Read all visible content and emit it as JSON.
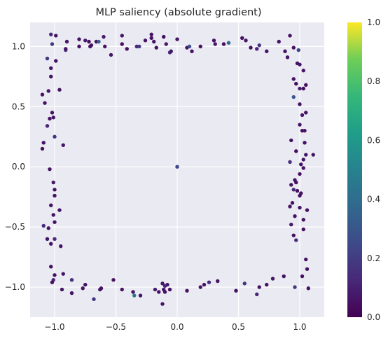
{
  "chart_data": {
    "type": "scatter",
    "title": "MLP saliency (absolute gradient)",
    "xlabel": "",
    "ylabel": "",
    "xlim": [
      -1.2,
      1.2
    ],
    "ylim": [
      -1.25,
      1.2
    ],
    "xticks": [
      -1.0,
      -0.5,
      0.0,
      0.5,
      1.0
    ],
    "xtick_labels": [
      "−1.0",
      "−0.5",
      "0.0",
      "0.5",
      "1.0"
    ],
    "yticks": [
      -1.0,
      -0.5,
      0.0,
      0.5,
      1.0
    ],
    "ytick_labels": [
      "−1.0",
      "−0.5",
      "0.0",
      "0.5",
      "1.0"
    ],
    "grid": true,
    "colormap": "viridis",
    "colorbar": {
      "range": [
        0,
        1
      ],
      "ticks": [
        0,
        0.2,
        0.4,
        0.6,
        0.8,
        1.0
      ],
      "tick_labels": [
        "0.0",
        "0.2",
        "0.4",
        "0.6",
        "0.8",
        "1.0"
      ]
    },
    "colors": {
      "axes_bg": "#eaeaf2",
      "grid": "#ffffff",
      "text": "#262626"
    },
    "points": [
      {
        "x": -1.03,
        "y": 1.1,
        "c": 0.12
      },
      {
        "x": -0.99,
        "y": 1.09,
        "c": 0.05
      },
      {
        "x": -1.02,
        "y": 1.02,
        "c": 0.18
      },
      {
        "x": -0.9,
        "y": 1.04,
        "c": 0.06
      },
      {
        "x": -0.91,
        "y": 0.97,
        "c": 0.15
      },
      {
        "x": -0.91,
        "y": 0.98,
        "c": 0.07
      },
      {
        "x": -0.8,
        "y": 1.0,
        "c": 0.05
      },
      {
        "x": -0.8,
        "y": 1.06,
        "c": 0.05
      },
      {
        "x": -0.75,
        "y": 1.05,
        "c": 0.08
      },
      {
        "x": -0.72,
        "y": 1.04,
        "c": 0.05
      },
      {
        "x": -0.71,
        "y": 1.0,
        "c": 0.04
      },
      {
        "x": -0.7,
        "y": 1.01,
        "c": 0.06
      },
      {
        "x": -0.66,
        "y": 1.04,
        "c": 0.05
      },
      {
        "x": -0.64,
        "y": 1.04,
        "c": 0.35
      },
      {
        "x": -0.6,
        "y": 1.08,
        "c": 0.08
      },
      {
        "x": -0.59,
        "y": 1.0,
        "c": 0.06
      },
      {
        "x": -0.54,
        "y": 0.93,
        "c": 0.06
      },
      {
        "x": -0.45,
        "y": 1.09,
        "c": 0.05
      },
      {
        "x": -0.45,
        "y": 1.02,
        "c": 0.04
      },
      {
        "x": -0.41,
        "y": 0.98,
        "c": 0.05
      },
      {
        "x": -0.33,
        "y": 1.0,
        "c": 0.12
      },
      {
        "x": -0.31,
        "y": 1.0,
        "c": 0.18
      },
      {
        "x": -0.26,
        "y": 1.05,
        "c": 0.05
      },
      {
        "x": -0.21,
        "y": 1.1,
        "c": 0.06
      },
      {
        "x": -0.21,
        "y": 1.07,
        "c": 0.05
      },
      {
        "x": -0.19,
        "y": 1.04,
        "c": 0.06
      },
      {
        "x": -0.17,
        "y": 0.99,
        "c": 0.05
      },
      {
        "x": -0.11,
        "y": 1.08,
        "c": 0.04
      },
      {
        "x": -0.09,
        "y": 1.02,
        "c": 0.08
      },
      {
        "x": -0.06,
        "y": 0.95,
        "c": 0.14
      },
      {
        "x": -0.05,
        "y": 0.96,
        "c": 0.07
      },
      {
        "x": 0.0,
        "y": 1.06,
        "c": 0.06
      },
      {
        "x": 0.08,
        "y": 0.99,
        "c": 0.05
      },
      {
        "x": 0.1,
        "y": 1.0,
        "c": 0.26
      },
      {
        "x": 0.12,
        "y": 0.96,
        "c": 0.06
      },
      {
        "x": 0.19,
        "y": 1.0,
        "c": 0.05
      },
      {
        "x": 0.3,
        "y": 1.05,
        "c": 0.05
      },
      {
        "x": 0.31,
        "y": 1.02,
        "c": 0.08
      },
      {
        "x": 0.38,
        "y": 1.02,
        "c": 0.05
      },
      {
        "x": 0.42,
        "y": 1.03,
        "c": 0.4
      },
      {
        "x": 0.53,
        "y": 1.07,
        "c": 0.05
      },
      {
        "x": 0.56,
        "y": 1.05,
        "c": 0.06
      },
      {
        "x": 0.6,
        "y": 0.99,
        "c": 0.05
      },
      {
        "x": 0.65,
        "y": 0.98,
        "c": 0.12
      },
      {
        "x": 0.67,
        "y": 1.01,
        "c": 0.17
      },
      {
        "x": 0.73,
        "y": 0.96,
        "c": 0.06
      },
      {
        "x": 0.83,
        "y": 1.04,
        "c": 0.06
      },
      {
        "x": 0.88,
        "y": 0.96,
        "c": 0.05
      },
      {
        "x": 0.92,
        "y": 1.09,
        "c": 0.05
      },
      {
        "x": 0.95,
        "y": 0.99,
        "c": 0.06
      },
      {
        "x": 0.99,
        "y": 0.97,
        "c": 0.22
      },
      {
        "x": 0.9,
        "y": 0.91,
        "c": 0.06
      },
      {
        "x": 0.98,
        "y": 0.86,
        "c": 0.05
      },
      {
        "x": 1.0,
        "y": 0.85,
        "c": 0.06
      },
      {
        "x": 1.03,
        "y": 0.8,
        "c": 0.06
      },
      {
        "x": 0.95,
        "y": 0.73,
        "c": 0.06
      },
      {
        "x": 0.97,
        "y": 0.69,
        "c": 0.05
      },
      {
        "x": 1.0,
        "y": 0.65,
        "c": 0.08
      },
      {
        "x": 1.03,
        "y": 0.65,
        "c": 0.04
      },
      {
        "x": 1.05,
        "y": 0.68,
        "c": 0.05
      },
      {
        "x": 0.95,
        "y": 0.58,
        "c": 0.3
      },
      {
        "x": 1.0,
        "y": 0.52,
        "c": 0.05
      },
      {
        "x": 1.02,
        "y": 0.43,
        "c": 0.06
      },
      {
        "x": 1.05,
        "y": 0.45,
        "c": 0.05
      },
      {
        "x": 1.0,
        "y": 0.35,
        "c": 0.06
      },
      {
        "x": 1.02,
        "y": 0.3,
        "c": 0.05
      },
      {
        "x": 1.04,
        "y": 0.3,
        "c": 0.05
      },
      {
        "x": 0.93,
        "y": 0.22,
        "c": 0.06
      },
      {
        "x": 1.04,
        "y": 0.2,
        "c": 0.05
      },
      {
        "x": 0.97,
        "y": 0.13,
        "c": 0.05
      },
      {
        "x": 1.05,
        "y": 0.1,
        "c": 0.05
      },
      {
        "x": 1.11,
        "y": 0.1,
        "c": 0.05
      },
      {
        "x": 1.03,
        "y": 0.06,
        "c": 0.06
      },
      {
        "x": 0.92,
        "y": 0.04,
        "c": 0.15
      },
      {
        "x": 1.01,
        "y": 0.02,
        "c": 0.06
      },
      {
        "x": 1.03,
        "y": -0.01,
        "c": 0.06
      },
      {
        "x": 1.0,
        "y": -0.06,
        "c": 0.05
      },
      {
        "x": 0.96,
        "y": -0.11,
        "c": 0.06
      },
      {
        "x": 0.97,
        "y": -0.13,
        "c": 0.05
      },
      {
        "x": 0.93,
        "y": -0.15,
        "c": 0.06
      },
      {
        "x": 0.95,
        "y": -0.19,
        "c": 0.12
      },
      {
        "x": 0.98,
        "y": -0.2,
        "c": 0.05
      },
      {
        "x": 1.01,
        "y": -0.22,
        "c": 0.05
      },
      {
        "x": 1.0,
        "y": -0.24,
        "c": 0.05
      },
      {
        "x": 0.94,
        "y": -0.3,
        "c": 0.05
      },
      {
        "x": 0.92,
        "y": -0.33,
        "c": 0.06
      },
      {
        "x": 1.0,
        "y": -0.34,
        "c": 0.06
      },
      {
        "x": 1.06,
        "y": -0.36,
        "c": 0.05
      },
      {
        "x": 0.96,
        "y": -0.41,
        "c": 0.06
      },
      {
        "x": 1.03,
        "y": -0.44,
        "c": 0.06
      },
      {
        "x": 0.93,
        "y": -0.48,
        "c": 0.08
      },
      {
        "x": 1.03,
        "y": -0.52,
        "c": 0.05
      },
      {
        "x": 0.95,
        "y": -0.57,
        "c": 0.05
      },
      {
        "x": 0.97,
        "y": -0.61,
        "c": 0.14
      },
      {
        "x": 1.05,
        "y": -0.77,
        "c": 0.05
      },
      {
        "x": 1.06,
        "y": -0.85,
        "c": 0.05
      },
      {
        "x": 1.02,
        "y": -0.91,
        "c": 0.05
      },
      {
        "x": 1.07,
        "y": -1.01,
        "c": 0.05
      },
      {
        "x": 0.96,
        "y": -1.0,
        "c": 0.18
      },
      {
        "x": 0.87,
        "y": -0.91,
        "c": 0.05
      },
      {
        "x": 0.78,
        "y": -0.93,
        "c": 0.06
      },
      {
        "x": 0.73,
        "y": -0.98,
        "c": 0.05
      },
      {
        "x": 0.67,
        "y": -1.0,
        "c": 0.06
      },
      {
        "x": 0.65,
        "y": -1.06,
        "c": 0.12
      },
      {
        "x": 0.55,
        "y": -0.97,
        "c": 0.18
      },
      {
        "x": 0.48,
        "y": -1.03,
        "c": 0.05
      },
      {
        "x": 0.33,
        "y": -0.95,
        "c": 0.06
      },
      {
        "x": 0.26,
        "y": -0.96,
        "c": 0.14
      },
      {
        "x": 0.22,
        "y": -0.98,
        "c": 0.05
      },
      {
        "x": 0.19,
        "y": -1.0,
        "c": 0.06
      },
      {
        "x": 0.08,
        "y": -1.03,
        "c": 0.05
      },
      {
        "x": -0.06,
        "y": -1.02,
        "c": 0.05
      },
      {
        "x": -0.08,
        "y": -0.98,
        "c": 0.06
      },
      {
        "x": -0.1,
        "y": -0.99,
        "c": 0.12
      },
      {
        "x": -0.11,
        "y": -1.02,
        "c": 0.06
      },
      {
        "x": -0.1,
        "y": -1.04,
        "c": 0.05
      },
      {
        "x": -0.12,
        "y": -0.97,
        "c": 0.06
      },
      {
        "x": -0.15,
        "y": -1.04,
        "c": 0.05
      },
      {
        "x": -0.18,
        "y": -1.02,
        "c": 0.08
      },
      {
        "x": -0.12,
        "y": -1.14,
        "c": 0.05
      },
      {
        "x": -0.3,
        "y": -1.07,
        "c": 0.06
      },
      {
        "x": -0.35,
        "y": -1.07,
        "c": 0.45
      },
      {
        "x": -0.36,
        "y": -1.04,
        "c": 0.06
      },
      {
        "x": -0.45,
        "y": -1.02,
        "c": 0.05
      },
      {
        "x": -0.52,
        "y": -0.94,
        "c": 0.06
      },
      {
        "x": -0.62,
        "y": -1.01,
        "c": 0.05
      },
      {
        "x": -0.63,
        "y": -1.02,
        "c": 0.06
      },
      {
        "x": -0.68,
        "y": -1.1,
        "c": 0.17
      },
      {
        "x": -0.75,
        "y": -0.98,
        "c": 0.05
      },
      {
        "x": -0.77,
        "y": -1.01,
        "c": 0.06
      },
      {
        "x": -0.86,
        "y": -0.94,
        "c": 0.15
      },
      {
        "x": -0.86,
        "y": -1.05,
        "c": 0.05
      },
      {
        "x": -0.93,
        "y": -0.89,
        "c": 0.06
      },
      {
        "x": -0.94,
        "y": -1.02,
        "c": 0.06
      },
      {
        "x": -1.0,
        "y": -0.9,
        "c": 0.05
      },
      {
        "x": -1.01,
        "y": -0.94,
        "c": 0.12
      },
      {
        "x": -1.02,
        "y": -0.96,
        "c": 0.05
      },
      {
        "x": -1.03,
        "y": -0.83,
        "c": 0.05
      },
      {
        "x": -0.95,
        "y": -0.66,
        "c": 0.06
      },
      {
        "x": -1.03,
        "y": -0.64,
        "c": 0.05
      },
      {
        "x": -1.0,
        "y": -0.6,
        "c": 0.14
      },
      {
        "x": -1.06,
        "y": -0.6,
        "c": 0.05
      },
      {
        "x": -1.09,
        "y": -0.49,
        "c": 0.14
      },
      {
        "x": -1.05,
        "y": -0.51,
        "c": 0.06
      },
      {
        "x": -1.0,
        "y": -0.46,
        "c": 0.05
      },
      {
        "x": -1.01,
        "y": -0.4,
        "c": 0.05
      },
      {
        "x": -0.96,
        "y": -0.36,
        "c": 0.06
      },
      {
        "x": -1.03,
        "y": -0.32,
        "c": 0.05
      },
      {
        "x": -1.0,
        "y": -0.24,
        "c": 0.06
      },
      {
        "x": -1.0,
        "y": -0.19,
        "c": 0.05
      },
      {
        "x": -1.01,
        "y": -0.13,
        "c": 0.06
      },
      {
        "x": -1.04,
        "y": -0.02,
        "c": 0.05
      },
      {
        "x": -0.93,
        "y": 0.18,
        "c": 0.05
      },
      {
        "x": -1.1,
        "y": 0.15,
        "c": 0.05
      },
      {
        "x": -1.09,
        "y": 0.2,
        "c": 0.06
      },
      {
        "x": -1.0,
        "y": 0.25,
        "c": 0.18
      },
      {
        "x": -1.06,
        "y": 0.34,
        "c": 0.12
      },
      {
        "x": -1.04,
        "y": 0.4,
        "c": 0.05
      },
      {
        "x": -1.01,
        "y": 0.41,
        "c": 0.06
      },
      {
        "x": -1.02,
        "y": 0.45,
        "c": 0.05
      },
      {
        "x": -1.08,
        "y": 0.53,
        "c": 0.06
      },
      {
        "x": -1.1,
        "y": 0.6,
        "c": 0.05
      },
      {
        "x": -1.05,
        "y": 0.63,
        "c": 0.06
      },
      {
        "x": -0.96,
        "y": 0.64,
        "c": 0.05
      },
      {
        "x": -1.03,
        "y": 0.75,
        "c": 0.05
      },
      {
        "x": -1.03,
        "y": 0.82,
        "c": 0.06
      },
      {
        "x": -0.99,
        "y": 0.88,
        "c": 0.05
      },
      {
        "x": -1.06,
        "y": 0.9,
        "c": 0.18
      },
      {
        "x": 0.0,
        "y": 0.0,
        "c": 0.24
      }
    ]
  }
}
